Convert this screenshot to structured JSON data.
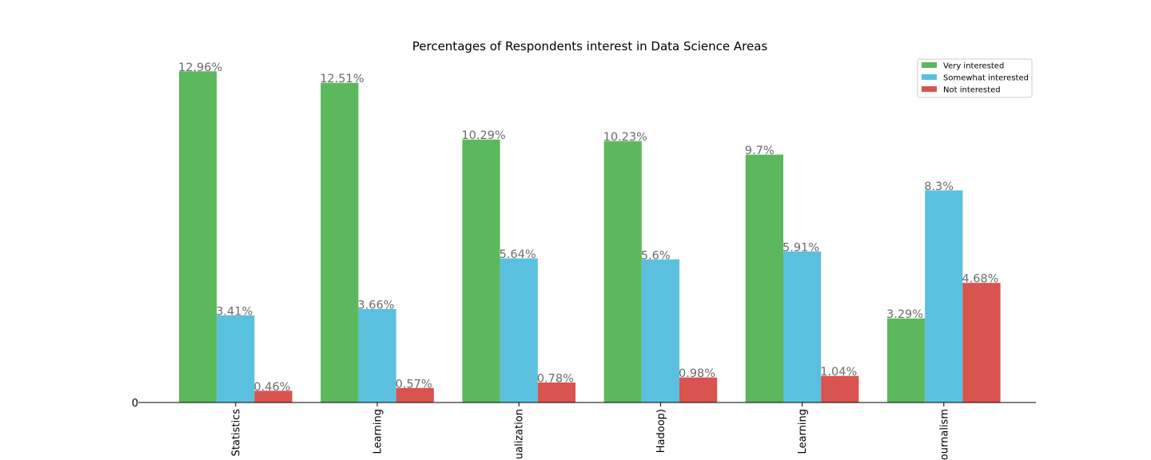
{
  "chart_data": {
    "type": "bar",
    "title": "Percentages of Respondents interest in Data Science Areas",
    "categories": [
      "Statistics",
      "Learning",
      "ualization",
      "Hadoop)",
      "Learning",
      "ournalism"
    ],
    "series": [
      {
        "name": "Very interested",
        "color": "#5cb85c",
        "values": [
          12.96,
          12.51,
          10.29,
          10.23,
          9.7,
          3.29
        ]
      },
      {
        "name": "Somewhat interested",
        "color": "#5bc0de",
        "values": [
          3.41,
          3.66,
          5.64,
          5.6,
          5.91,
          8.3
        ]
      },
      {
        "name": "Not interested",
        "color": "#d9534f",
        "values": [
          0.46,
          0.57,
          0.78,
          0.98,
          1.04,
          4.68
        ]
      }
    ],
    "value_labels": [
      [
        "12.96%",
        "12.51%",
        "10.29%",
        "10.23%",
        "9.7%",
        "3.29%"
      ],
      [
        "3.41%",
        "3.66%",
        "5.64%",
        "5.6%",
        "5.91%",
        "8.3%"
      ],
      [
        "0.46%",
        "0.57%",
        "0.78%",
        "0.98%",
        "1.04%",
        "4.68%"
      ]
    ],
    "y_ticks": [
      "0"
    ],
    "ylim": [
      0,
      13
    ],
    "legend_position": "top-right",
    "grid": false
  }
}
